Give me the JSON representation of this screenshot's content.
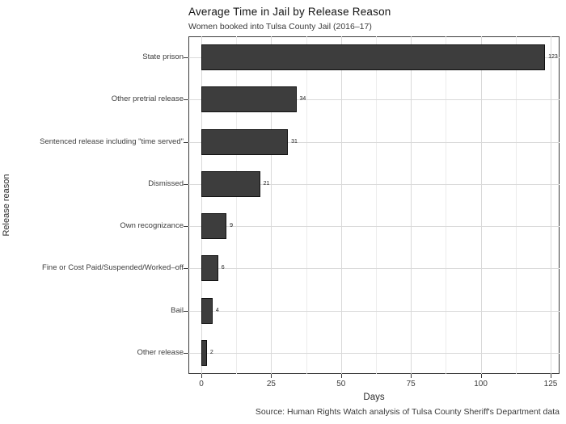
{
  "title": "Average Time in Jail by Release Reason",
  "subtitle": "Women booked into Tulsa County Jail (2016–17)",
  "caption": "Source: Human Rights Watch analysis of Tulsa County Sheriff's Department data",
  "chart_data": {
    "type": "bar",
    "orientation": "horizontal",
    "title": "Average Time in Jail by Release Reason",
    "subtitle": "Women booked into Tulsa County Jail (2016–17)",
    "xlabel": "Days",
    "ylabel": "Release reason",
    "categories": [
      "State prison",
      "Other pretrial release",
      "Sentenced release including \"time served\"",
      "Dismissed",
      "Own recognizance",
      "Fine or Cost Paid/Suspended/Worked–off",
      "Bail",
      "Other release"
    ],
    "values": [
      123,
      34,
      31,
      21,
      9,
      6,
      4,
      2
    ],
    "xlim": [
      0,
      125
    ],
    "x_major_ticks": [
      0,
      25,
      50,
      75,
      100,
      125
    ],
    "x_minor_ticks": [
      12.5,
      37.5,
      62.5,
      87.5,
      112.5
    ],
    "grid": true,
    "legend": "none",
    "colors": {
      "bar_fill": "#3d3d3d",
      "bar_stroke": "#101010",
      "grid_major": "#d9d9d9",
      "grid_minor": "#ececec",
      "panel_border": "#3c3c3c",
      "axis_text": "#3d3d3d"
    }
  }
}
